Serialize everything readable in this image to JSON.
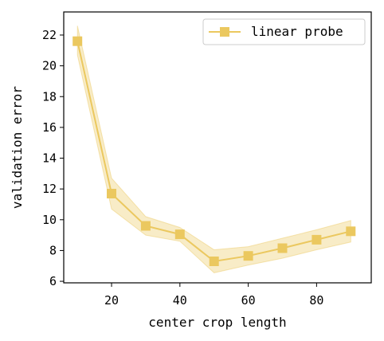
{
  "chart_data": {
    "type": "line",
    "xlabel": "center crop length",
    "ylabel": "validation error",
    "xlim": [
      6,
      96
    ],
    "ylim": [
      5.9,
      23.5
    ],
    "xticks": [
      20,
      40,
      60,
      80
    ],
    "yticks": [
      6,
      8,
      10,
      12,
      14,
      16,
      18,
      20,
      22
    ],
    "grid": false,
    "legend": "top-right",
    "series": [
      {
        "name": "linear probe",
        "color": "#ebc85f",
        "marker": "square",
        "x": [
          10,
          20,
          30,
          40,
          50,
          60,
          70,
          80,
          90
        ],
        "y": [
          21.6,
          11.7,
          9.6,
          9.05,
          7.3,
          7.65,
          8.15,
          8.7,
          9.25
        ],
        "y_lower": [
          20.7,
          10.7,
          9.0,
          8.6,
          6.55,
          7.05,
          7.5,
          8.05,
          8.55
        ],
        "y_upper": [
          22.6,
          12.7,
          10.2,
          9.5,
          8.05,
          8.25,
          8.8,
          9.35,
          9.95
        ]
      }
    ]
  }
}
